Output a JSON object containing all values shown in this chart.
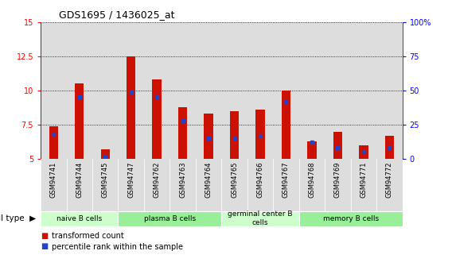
{
  "title": "GDS1695 / 1436025_at",
  "samples": [
    "GSM94741",
    "GSM94744",
    "GSM94745",
    "GSM94747",
    "GSM94762",
    "GSM94763",
    "GSM94764",
    "GSM94765",
    "GSM94766",
    "GSM94767",
    "GSM94768",
    "GSM94769",
    "GSM94771",
    "GSM94772"
  ],
  "transformed_count": [
    7.4,
    10.5,
    5.7,
    12.5,
    10.8,
    8.8,
    8.3,
    8.5,
    8.6,
    10.0,
    6.3,
    7.0,
    6.0,
    6.7
  ],
  "percentile_rank_pct": [
    18,
    45,
    2,
    49,
    45,
    28,
    15,
    15,
    17,
    42,
    12,
    8,
    5,
    8
  ],
  "ymin": 5,
  "ymax": 15,
  "yticks": [
    5,
    7.5,
    10,
    12.5,
    15
  ],
  "ytick_labels": [
    "5",
    "7.5",
    "10",
    "12.5",
    "15"
  ],
  "y2min": 0,
  "y2max": 100,
  "y2ticks": [
    0,
    25,
    50,
    75,
    100
  ],
  "y2tick_labels": [
    "0",
    "25",
    "50",
    "75",
    "100%"
  ],
  "cell_groups": [
    {
      "label": "naive B cells",
      "start": 0,
      "end": 3,
      "color": "#ccffcc"
    },
    {
      "label": "plasma B cells",
      "start": 3,
      "end": 7,
      "color": "#99ee99"
    },
    {
      "label": "germinal center B\ncells",
      "start": 7,
      "end": 10,
      "color": "#ccffcc"
    },
    {
      "label": "memory B cells",
      "start": 10,
      "end": 14,
      "color": "#99ee99"
    }
  ],
  "bar_color": "#cc1100",
  "percentile_color": "#2244cc",
  "bar_width": 0.35,
  "tick_bg_color": "#dddddd",
  "cell_type_label": "cell type",
  "legend_items": [
    {
      "label": "transformed count",
      "color": "#cc1100"
    },
    {
      "label": "percentile rank within the sample",
      "color": "#2244cc"
    }
  ]
}
